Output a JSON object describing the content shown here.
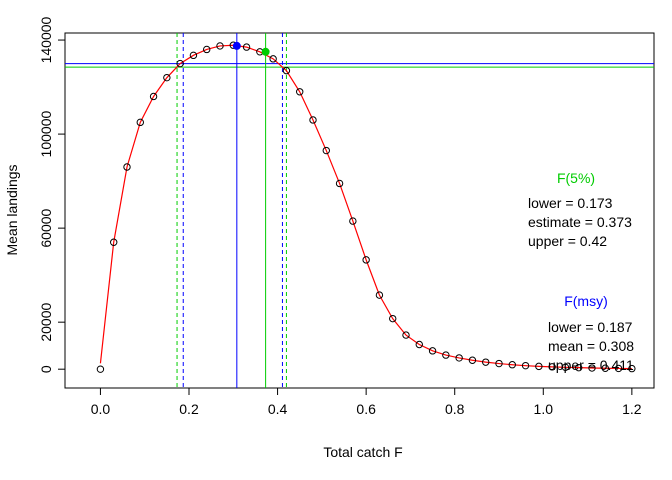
{
  "chart_data": {
    "type": "line",
    "xlabel": "Total catch F",
    "ylabel": "Mean landings",
    "xlim": [
      -0.08,
      1.25
    ],
    "ylim": [
      -8000,
      143000
    ],
    "x_ticks": [
      0.0,
      0.2,
      0.4,
      0.6,
      0.8,
      1.0,
      1.2
    ],
    "x_tick_labels": [
      "0.0",
      "0.2",
      "0.4",
      "0.6",
      "0.8",
      "1.0",
      "1.2"
    ],
    "y_ticks": [
      0,
      20000,
      60000,
      100000,
      140000
    ],
    "y_tick_labels": [
      "0",
      "20000",
      "60000",
      "100000",
      "140000"
    ],
    "series": [
      {
        "kind": "points",
        "color": "#000000",
        "x": [
          0.0,
          0.03,
          0.06,
          0.09,
          0.12,
          0.15,
          0.18,
          0.21,
          0.24,
          0.27,
          0.3,
          0.33,
          0.36,
          0.39,
          0.42,
          0.45,
          0.48,
          0.51,
          0.54,
          0.57,
          0.6,
          0.63,
          0.66,
          0.69,
          0.72,
          0.75,
          0.78,
          0.81,
          0.84,
          0.87,
          0.9,
          0.93,
          0.96,
          0.99,
          1.02,
          1.05,
          1.08,
          1.11,
          1.14,
          1.17,
          1.2
        ],
        "y": [
          0,
          54000,
          86000,
          105000,
          116000,
          124000,
          130000,
          133500,
          136000,
          137500,
          137800,
          137000,
          135000,
          132000,
          127000,
          118000,
          106000,
          93000,
          79000,
          63000,
          46500,
          31500,
          21500,
          14500,
          10500,
          7800,
          6000,
          4800,
          3800,
          3000,
          2400,
          1900,
          1500,
          1200,
          1000,
          800,
          650,
          500,
          400,
          320,
          250
        ]
      },
      {
        "kind": "line",
        "color": "#ff0000",
        "x": [
          0.0,
          0.03,
          0.06,
          0.09,
          0.12,
          0.15,
          0.18,
          0.21,
          0.24,
          0.27,
          0.3,
          0.33,
          0.36,
          0.39,
          0.42,
          0.45,
          0.48,
          0.51,
          0.54,
          0.57,
          0.6,
          0.63,
          0.66,
          0.69,
          0.72,
          0.75,
          0.78,
          0.81,
          0.84,
          0.87,
          0.9,
          0.93,
          0.96,
          0.99,
          1.02,
          1.05,
          1.08,
          1.11,
          1.14,
          1.17,
          1.2
        ],
        "y": [
          2500,
          54000,
          86000,
          105000,
          116000,
          124000,
          130000,
          133500,
          136000,
          137500,
          137800,
          137000,
          135000,
          132000,
          127000,
          118000,
          106000,
          93000,
          79000,
          63000,
          46500,
          31500,
          21500,
          14500,
          10500,
          7800,
          6000,
          4800,
          3800,
          3000,
          2400,
          1900,
          1500,
          1200,
          1000,
          800,
          650,
          500,
          400,
          320,
          250
        ]
      }
    ],
    "highlight_points": [
      {
        "x": 0.308,
        "y": 137500,
        "color": "#0000ff"
      },
      {
        "x": 0.373,
        "y": 135000,
        "color": "#00cc00"
      }
    ],
    "hlines": [
      {
        "y": 130000,
        "color": "#0000ff",
        "style": "solid"
      },
      {
        "y": 128500,
        "color": "#00cc00",
        "style": "solid"
      }
    ],
    "vlines": [
      {
        "x": 0.308,
        "color": "#0000ff",
        "style": "solid"
      },
      {
        "x": 0.373,
        "color": "#00cc00",
        "style": "solid"
      },
      {
        "x": 0.187,
        "color": "#0000ff",
        "style": "dashed"
      },
      {
        "x": 0.411,
        "color": "#0000ff",
        "style": "dashed"
      },
      {
        "x": 0.173,
        "color": "#00cc00",
        "style": "dashed"
      },
      {
        "x": 0.42,
        "color": "#00cc00",
        "style": "dashed"
      }
    ],
    "annotations": {
      "f5": {
        "title": "F(5%)",
        "title_color": "#00cc00",
        "lines": [
          "lower = 0.173",
          "estimate = 0.373",
          "upper = 0.42"
        ]
      },
      "fmsy": {
        "title": "F(msy)",
        "title_color": "#0000ff",
        "lines": [
          "lower = 0.187",
          "mean = 0.308",
          "upper = 0.411"
        ]
      }
    }
  }
}
